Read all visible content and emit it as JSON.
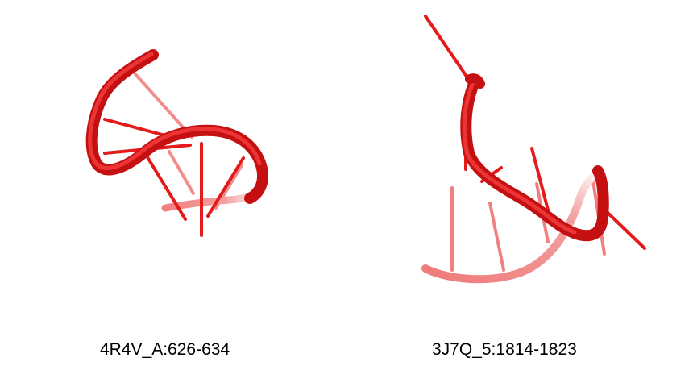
{
  "panels": [
    {
      "label": "4R4V_A:626-634",
      "color": "#e51a1a"
    },
    {
      "label": "3J7Q_5:1814-1823",
      "color": "#e51a1a"
    }
  ]
}
